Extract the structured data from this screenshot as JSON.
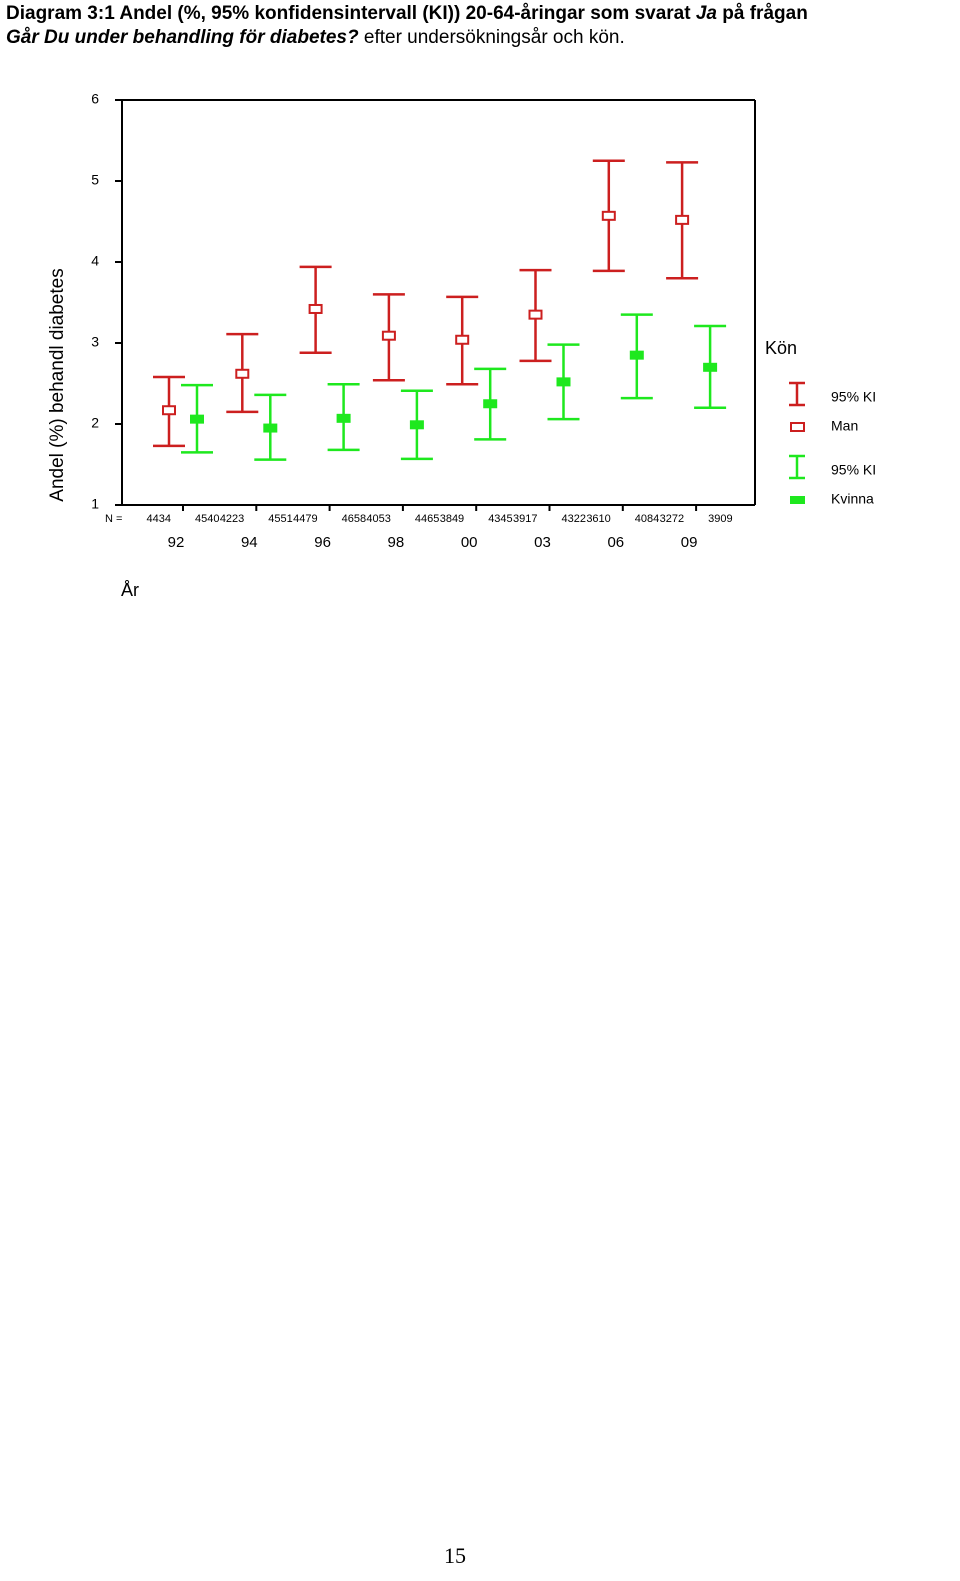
{
  "title_parts": [
    "Diagram 3:1 Andel (%, 95% konfidensintervall (KI)) 20-64-åringar som svarat ",
    "Ja",
    " på frågan ",
    "Går Du under behandling för diabetes?",
    " efter undersökningsår och kön."
  ],
  "chart_data": {
    "type": "errorbar",
    "ylabel": "Andel (%) behandl diabetes",
    "xlabel": "År",
    "n_label": "N =",
    "categories": [
      "92",
      "94",
      "96",
      "98",
      "00",
      "03",
      "06",
      "09"
    ],
    "ylim": [
      1,
      6
    ],
    "yticks": [
      1,
      2,
      3,
      4,
      5,
      6
    ],
    "legend_title": "Kön",
    "ci_label": "95% KI",
    "series": [
      {
        "name": "Man",
        "color": "#cc1f1f",
        "marker": "hollow",
        "values": [
          2.17,
          2.62,
          3.42,
          3.09,
          3.04,
          3.35,
          4.57,
          4.52
        ],
        "lower": [
          1.73,
          2.15,
          2.88,
          2.54,
          2.49,
          2.78,
          3.89,
          3.8
        ],
        "upper": [
          2.58,
          3.11,
          3.94,
          3.6,
          3.57,
          3.9,
          5.25,
          5.23
        ],
        "n": [
          4434,
          4223,
          4479,
          4053,
          3849,
          3917,
          3610,
          3272
        ]
      },
      {
        "name": "Kvinna",
        "color": "#1ee81e",
        "marker": "filled",
        "values": [
          2.06,
          1.95,
          2.07,
          1.99,
          2.25,
          2.52,
          2.85,
          2.7
        ],
        "lower": [
          1.65,
          1.56,
          1.68,
          1.57,
          1.81,
          2.06,
          2.32,
          2.2
        ],
        "upper": [
          2.48,
          2.36,
          2.49,
          2.41,
          2.68,
          2.98,
          3.35,
          3.21
        ],
        "n": [
          4540,
          4551,
          4658,
          4465,
          4345,
          4322,
          4084,
          3909
        ]
      }
    ]
  },
  "page_number": "15"
}
